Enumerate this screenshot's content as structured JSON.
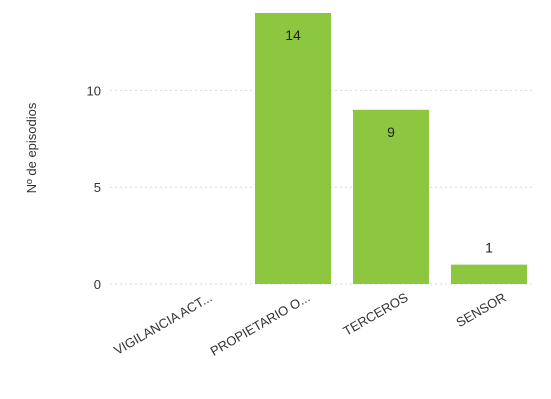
{
  "chart_data": {
    "type": "bar",
    "title": "",
    "xlabel": "",
    "ylabel": "Nº de episodios",
    "categories": [
      "VIGILANCIA ACT...",
      "PROPIETARIO O...",
      "TERCEROS",
      "SENSOR"
    ],
    "values": [
      0,
      14,
      9,
      1
    ],
    "ylim": [
      0,
      14
    ],
    "yticks": [
      0,
      5,
      10
    ],
    "grid": true,
    "bar_color": "#8dc63f",
    "data_labels": true
  }
}
